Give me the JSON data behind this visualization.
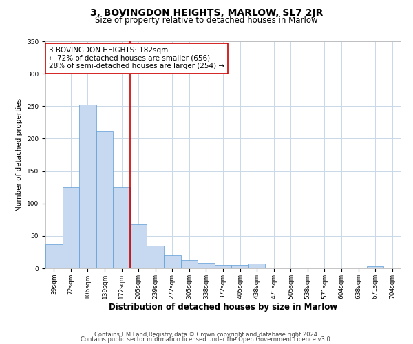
{
  "title": "3, BOVINGDON HEIGHTS, MARLOW, SL7 2JR",
  "subtitle": "Size of property relative to detached houses in Marlow",
  "xlabel": "Distribution of detached houses by size in Marlow",
  "ylabel": "Number of detached properties",
  "bar_labels": [
    "39sqm",
    "72sqm",
    "106sqm",
    "139sqm",
    "172sqm",
    "205sqm",
    "239sqm",
    "272sqm",
    "305sqm",
    "338sqm",
    "372sqm",
    "405sqm",
    "438sqm",
    "471sqm",
    "505sqm",
    "538sqm",
    "571sqm",
    "604sqm",
    "638sqm",
    "671sqm",
    "704sqm"
  ],
  "bar_values": [
    37,
    125,
    252,
    211,
    125,
    68,
    35,
    20,
    13,
    9,
    5,
    5,
    7,
    1,
    1,
    0,
    0,
    0,
    0,
    3,
    0
  ],
  "bar_color": "#c6d9f0",
  "bar_edge_color": "#5b9bd5",
  "vline_x": 4.5,
  "vline_color": "#cc0000",
  "annotation_text": "3 BOVINGDON HEIGHTS: 182sqm\n← 72% of detached houses are smaller (656)\n28% of semi-detached houses are larger (254) →",
  "annotation_box_color": "#ffffff",
  "annotation_box_edge_color": "#cc0000",
  "ylim": [
    0,
    350
  ],
  "yticks": [
    0,
    50,
    100,
    150,
    200,
    250,
    300,
    350
  ],
  "footer_line1": "Contains HM Land Registry data © Crown copyright and database right 2024.",
  "footer_line2": "Contains public sector information licensed under the Open Government Licence v3.0.",
  "background_color": "#ffffff",
  "grid_color": "#c8d8e8",
  "title_fontsize": 10,
  "subtitle_fontsize": 8.5,
  "ylabel_fontsize": 7.5,
  "xlabel_fontsize": 8.5,
  "tick_fontsize": 6.5,
  "annot_fontsize": 7.5,
  "footer_fontsize": 6
}
